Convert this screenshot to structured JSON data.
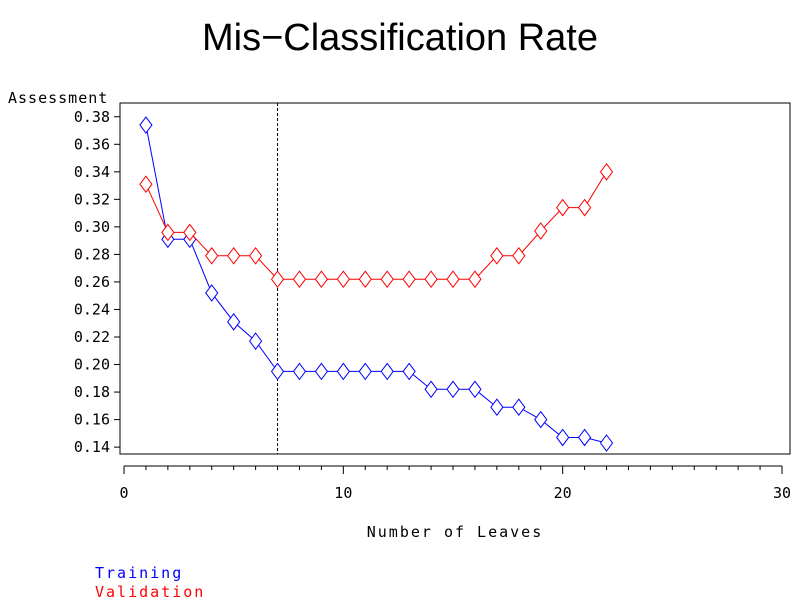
{
  "chart_data": {
    "type": "line",
    "title": "Mis−Classification Rate",
    "xlabel": "Number of Leaves",
    "ylabel": "Assessment",
    "xlim": [
      0,
      30
    ],
    "ylim": [
      0.135,
      0.39
    ],
    "x_ticks": [
      0,
      10,
      20,
      30
    ],
    "y_ticks": [
      0.14,
      0.16,
      0.18,
      0.2,
      0.22,
      0.24,
      0.26,
      0.28,
      0.3,
      0.32,
      0.34,
      0.36,
      0.38
    ],
    "y_tick_labels": [
      "0.14",
      "0.16",
      "0.18",
      "0.20",
      "0.22",
      "0.24",
      "0.26",
      "0.28",
      "0.30",
      "0.32",
      "0.34",
      "0.36",
      "0.38"
    ],
    "x_tick_labels": [
      "0",
      "10",
      "20",
      "30"
    ],
    "reference_line_x": 7,
    "grid": false,
    "legend_position": "bottom-left",
    "x": [
      1,
      2,
      3,
      4,
      5,
      6,
      7,
      8,
      9,
      10,
      11,
      12,
      13,
      14,
      15,
      16,
      17,
      18,
      19,
      20,
      21,
      22
    ],
    "series": [
      {
        "name": "Training",
        "color": "#0000ff",
        "marker": "diamond",
        "values": [
          0.374,
          0.291,
          0.291,
          0.252,
          0.231,
          0.217,
          0.195,
          0.195,
          0.195,
          0.195,
          0.195,
          0.195,
          0.195,
          0.182,
          0.182,
          0.182,
          0.169,
          0.169,
          0.16,
          0.147,
          0.147,
          0.143
        ]
      },
      {
        "name": "Validation",
        "color": "#ff0000",
        "marker": "diamond",
        "values": [
          0.331,
          0.296,
          0.296,
          0.279,
          0.279,
          0.279,
          0.262,
          0.262,
          0.262,
          0.262,
          0.262,
          0.262,
          0.262,
          0.262,
          0.262,
          0.262,
          0.279,
          0.279,
          0.297,
          0.314,
          0.314,
          0.34
        ]
      }
    ]
  }
}
